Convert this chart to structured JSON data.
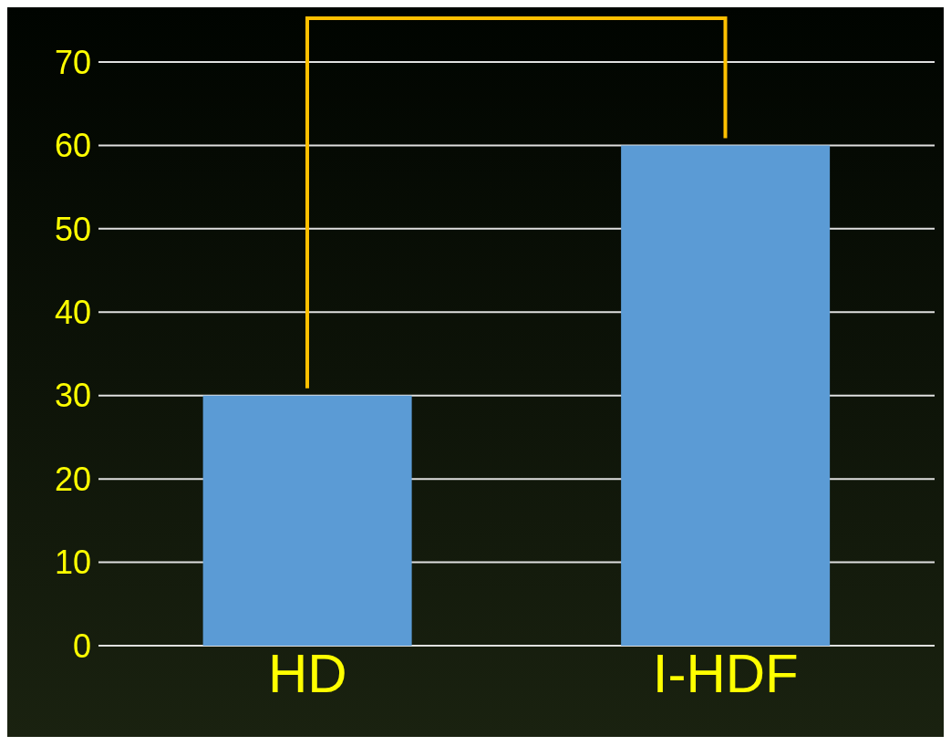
{
  "chart_data": {
    "type": "bar",
    "categories": [
      "HD",
      "I-HDF"
    ],
    "values": [
      30,
      60
    ],
    "color": "#5b9bd5",
    "ylim": [
      0,
      70
    ],
    "yticks": [
      0,
      10,
      20,
      30,
      40,
      50,
      60,
      70
    ],
    "grid": "y"
  }
}
